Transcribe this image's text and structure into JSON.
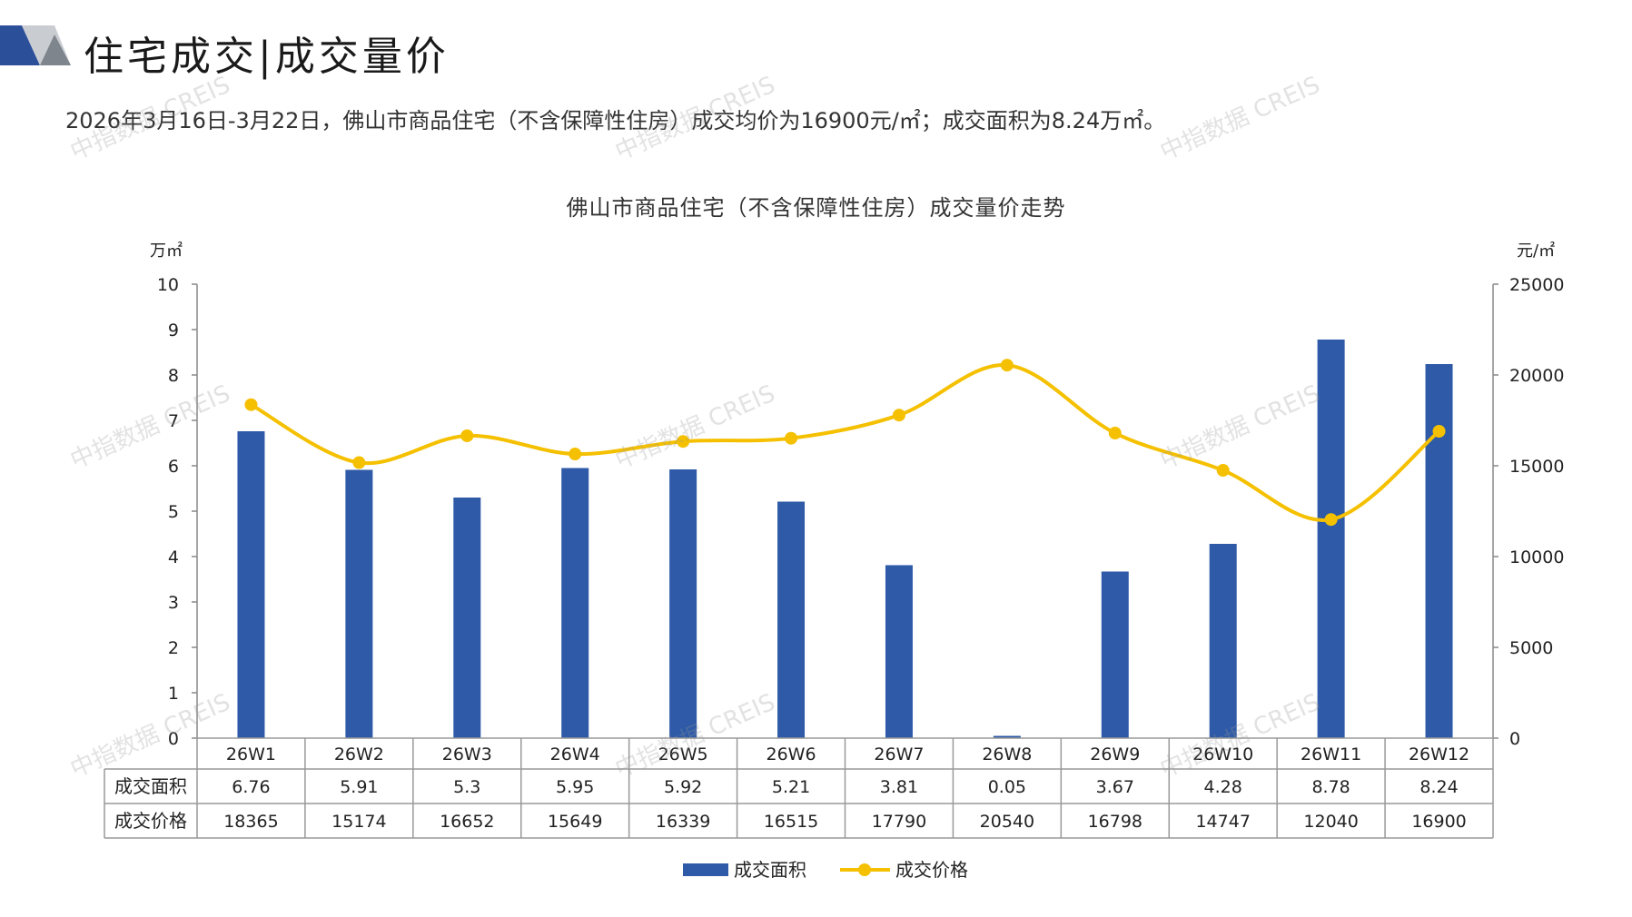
{
  "header": {
    "title": "住宅成交|成交量价"
  },
  "summary": "2026年3月16日-3月22日，佛山市商品住宅（不含保障性住房）成交均价为16900元/㎡；成交面积为8.24万㎡。",
  "watermark_text": "中指数据 CREIS",
  "colors": {
    "bar": "#2e5aa7",
    "line": "#f5c000",
    "accent_dark": "#2c4f9a",
    "accent_gray": "#9aa0a8"
  },
  "chart_data": {
    "type": "bar+line",
    "title": "佛山市商品住宅（不含保障性住房）成交量价走势",
    "categories": [
      "26W1",
      "26W2",
      "26W3",
      "26W4",
      "26W5",
      "26W6",
      "26W7",
      "26W8",
      "26W9",
      "26W10",
      "26W11",
      "26W12"
    ],
    "series": [
      {
        "name": "成交面积",
        "type": "bar",
        "axis": "left",
        "values": [
          6.76,
          5.91,
          5.3,
          5.95,
          5.92,
          5.21,
          3.81,
          0.05,
          3.67,
          4.28,
          8.78,
          8.24
        ],
        "table_labels": [
          "6.76",
          "5.91",
          "5.3",
          "5.95",
          "5.92",
          "5.21",
          "3.81",
          "0.05",
          "3.67",
          "4.28",
          "8.78",
          "8.24"
        ]
      },
      {
        "name": "成交价格",
        "type": "line",
        "axis": "right",
        "values": [
          18365,
          15174,
          16652,
          15649,
          16339,
          16515,
          17790,
          20540,
          16798,
          14747,
          12040,
          16900
        ],
        "table_labels": [
          "18365",
          "15174",
          "16652",
          "15649",
          "16339",
          "16515",
          "17790",
          "20540",
          "16798",
          "14747",
          "12040",
          "16900"
        ]
      }
    ],
    "left_axis": {
      "unit": "万㎡",
      "ylim": [
        0,
        10
      ],
      "ticks": [
        "0",
        "1",
        "2",
        "3",
        "4",
        "5",
        "6",
        "7",
        "8",
        "9",
        "10"
      ]
    },
    "right_axis": {
      "unit": "元/㎡",
      "ylim": [
        0,
        25000
      ],
      "ticks": [
        "0",
        "5000",
        "10000",
        "15000",
        "20000",
        "25000"
      ]
    },
    "grid": false,
    "legend_position": "bottom",
    "data_table": true
  }
}
